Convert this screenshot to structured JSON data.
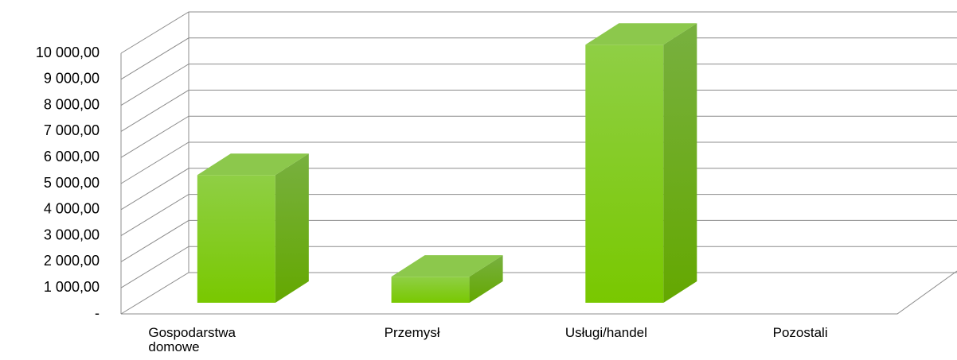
{
  "chart_data": {
    "type": "bar3d",
    "categories": [
      "Gospodarstwa domowe",
      "Przemysł",
      "Usługi/handel",
      "Pozostali"
    ],
    "values": [
      4900,
      1000,
      9900,
      0
    ],
    "color": "#7cc800",
    "ylim": [
      0,
      10000
    ],
    "yticks": [
      {
        "value": 0,
        "label": "-"
      },
      {
        "value": 1000,
        "label": "1 000,00"
      },
      {
        "value": 2000,
        "label": "2 000,00"
      },
      {
        "value": 3000,
        "label": "3 000,00"
      },
      {
        "value": 4000,
        "label": "4 000,00"
      },
      {
        "value": 5000,
        "label": "5 000,00"
      },
      {
        "value": 6000,
        "label": "6 000,00"
      },
      {
        "value": 7000,
        "label": "7 000,00"
      },
      {
        "value": 8000,
        "label": "8 000,00"
      },
      {
        "value": 9000,
        "label": "9 000,00"
      },
      {
        "value": 10000,
        "label": "10 000,00"
      }
    ],
    "grid": true
  }
}
